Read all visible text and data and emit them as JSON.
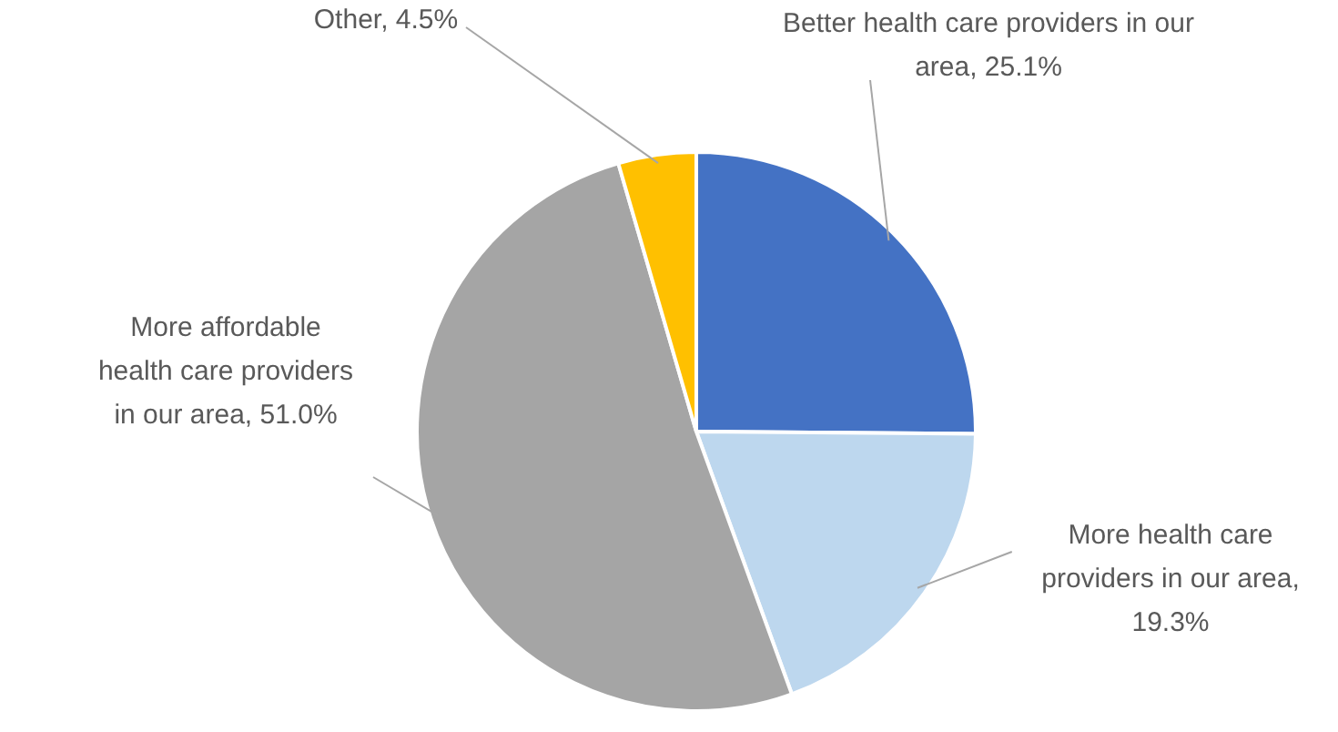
{
  "chart_data": {
    "type": "pie",
    "categories": [
      "Better health care providers in our area, 25.1%",
      "More health care providers in our area, 19.3%",
      "More affordable health care providers in our area, 51.0%",
      "Other, 4.5%"
    ],
    "values": [
      25.1,
      19.3,
      51.0,
      4.5
    ],
    "colors": [
      "#4472c4",
      "#bdd7ee",
      "#a5a5a5",
      "#ffc000"
    ],
    "legend": false
  }
}
